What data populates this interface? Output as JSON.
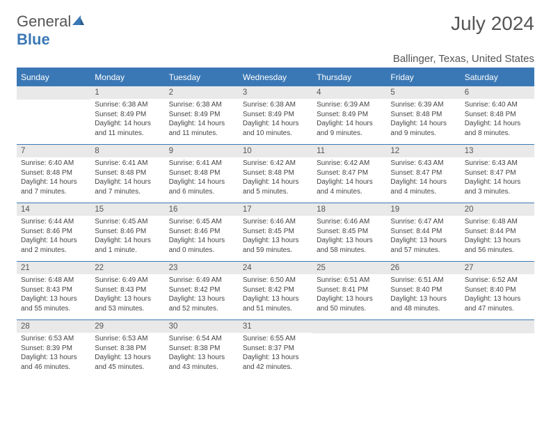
{
  "logo": {
    "text1": "General",
    "text2": "Blue"
  },
  "title": {
    "month": "July 2024",
    "location": "Ballinger, Texas, United States"
  },
  "colors": {
    "accent": "#3a78b5",
    "header_bg": "#3a78b5",
    "daynum_bg": "#e9e9e9",
    "text": "#555555"
  },
  "weekdays": [
    "Sunday",
    "Monday",
    "Tuesday",
    "Wednesday",
    "Thursday",
    "Friday",
    "Saturday"
  ],
  "start_offset": 1,
  "days": [
    {
      "n": 1,
      "sr": "6:38 AM",
      "ss": "8:49 PM",
      "dl": "14 hours and 11 minutes."
    },
    {
      "n": 2,
      "sr": "6:38 AM",
      "ss": "8:49 PM",
      "dl": "14 hours and 11 minutes."
    },
    {
      "n": 3,
      "sr": "6:38 AM",
      "ss": "8:49 PM",
      "dl": "14 hours and 10 minutes."
    },
    {
      "n": 4,
      "sr": "6:39 AM",
      "ss": "8:49 PM",
      "dl": "14 hours and 9 minutes."
    },
    {
      "n": 5,
      "sr": "6:39 AM",
      "ss": "8:48 PM",
      "dl": "14 hours and 9 minutes."
    },
    {
      "n": 6,
      "sr": "6:40 AM",
      "ss": "8:48 PM",
      "dl": "14 hours and 8 minutes."
    },
    {
      "n": 7,
      "sr": "6:40 AM",
      "ss": "8:48 PM",
      "dl": "14 hours and 7 minutes."
    },
    {
      "n": 8,
      "sr": "6:41 AM",
      "ss": "8:48 PM",
      "dl": "14 hours and 7 minutes."
    },
    {
      "n": 9,
      "sr": "6:41 AM",
      "ss": "8:48 PM",
      "dl": "14 hours and 6 minutes."
    },
    {
      "n": 10,
      "sr": "6:42 AM",
      "ss": "8:48 PM",
      "dl": "14 hours and 5 minutes."
    },
    {
      "n": 11,
      "sr": "6:42 AM",
      "ss": "8:47 PM",
      "dl": "14 hours and 4 minutes."
    },
    {
      "n": 12,
      "sr": "6:43 AM",
      "ss": "8:47 PM",
      "dl": "14 hours and 4 minutes."
    },
    {
      "n": 13,
      "sr": "6:43 AM",
      "ss": "8:47 PM",
      "dl": "14 hours and 3 minutes."
    },
    {
      "n": 14,
      "sr": "6:44 AM",
      "ss": "8:46 PM",
      "dl": "14 hours and 2 minutes."
    },
    {
      "n": 15,
      "sr": "6:45 AM",
      "ss": "8:46 PM",
      "dl": "14 hours and 1 minute."
    },
    {
      "n": 16,
      "sr": "6:45 AM",
      "ss": "8:46 PM",
      "dl": "14 hours and 0 minutes."
    },
    {
      "n": 17,
      "sr": "6:46 AM",
      "ss": "8:45 PM",
      "dl": "13 hours and 59 minutes."
    },
    {
      "n": 18,
      "sr": "6:46 AM",
      "ss": "8:45 PM",
      "dl": "13 hours and 58 minutes."
    },
    {
      "n": 19,
      "sr": "6:47 AM",
      "ss": "8:44 PM",
      "dl": "13 hours and 57 minutes."
    },
    {
      "n": 20,
      "sr": "6:48 AM",
      "ss": "8:44 PM",
      "dl": "13 hours and 56 minutes."
    },
    {
      "n": 21,
      "sr": "6:48 AM",
      "ss": "8:43 PM",
      "dl": "13 hours and 55 minutes."
    },
    {
      "n": 22,
      "sr": "6:49 AM",
      "ss": "8:43 PM",
      "dl": "13 hours and 53 minutes."
    },
    {
      "n": 23,
      "sr": "6:49 AM",
      "ss": "8:42 PM",
      "dl": "13 hours and 52 minutes."
    },
    {
      "n": 24,
      "sr": "6:50 AM",
      "ss": "8:42 PM",
      "dl": "13 hours and 51 minutes."
    },
    {
      "n": 25,
      "sr": "6:51 AM",
      "ss": "8:41 PM",
      "dl": "13 hours and 50 minutes."
    },
    {
      "n": 26,
      "sr": "6:51 AM",
      "ss": "8:40 PM",
      "dl": "13 hours and 48 minutes."
    },
    {
      "n": 27,
      "sr": "6:52 AM",
      "ss": "8:40 PM",
      "dl": "13 hours and 47 minutes."
    },
    {
      "n": 28,
      "sr": "6:53 AM",
      "ss": "8:39 PM",
      "dl": "13 hours and 46 minutes."
    },
    {
      "n": 29,
      "sr": "6:53 AM",
      "ss": "8:38 PM",
      "dl": "13 hours and 45 minutes."
    },
    {
      "n": 30,
      "sr": "6:54 AM",
      "ss": "8:38 PM",
      "dl": "13 hours and 43 minutes."
    },
    {
      "n": 31,
      "sr": "6:55 AM",
      "ss": "8:37 PM",
      "dl": "13 hours and 42 minutes."
    }
  ],
  "labels": {
    "sunrise": "Sunrise:",
    "sunset": "Sunset:",
    "daylight": "Daylight:"
  }
}
